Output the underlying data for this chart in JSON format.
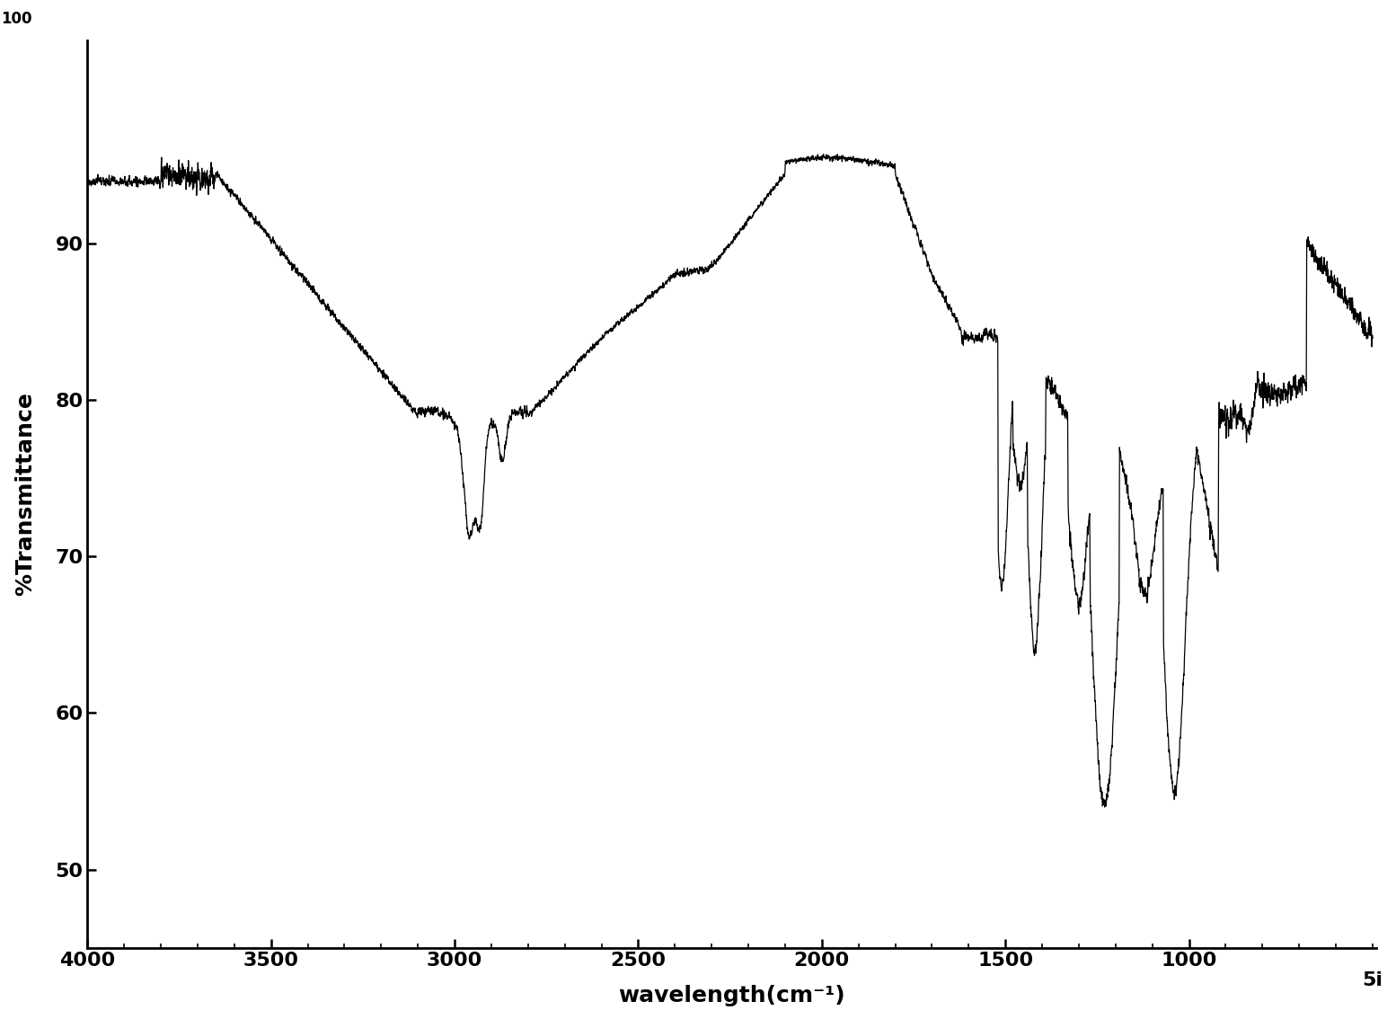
{
  "xlabel": "wavelength(cm⁻¹)",
  "ylabel": "%Transmittance",
  "xlim_left": 4000,
  "xlim_right": 490,
  "ylim_bottom": 45,
  "ylim_top": 103,
  "yticks": [
    50,
    60,
    70,
    80,
    90
  ],
  "xticks": [
    4000,
    3500,
    3000,
    2500,
    2000,
    1500,
    1000
  ],
  "line_color": "#000000",
  "background_color": "#ffffff",
  "xlabel_fontsize": 18,
  "ylabel_fontsize": 18,
  "tick_fontsize": 16
}
